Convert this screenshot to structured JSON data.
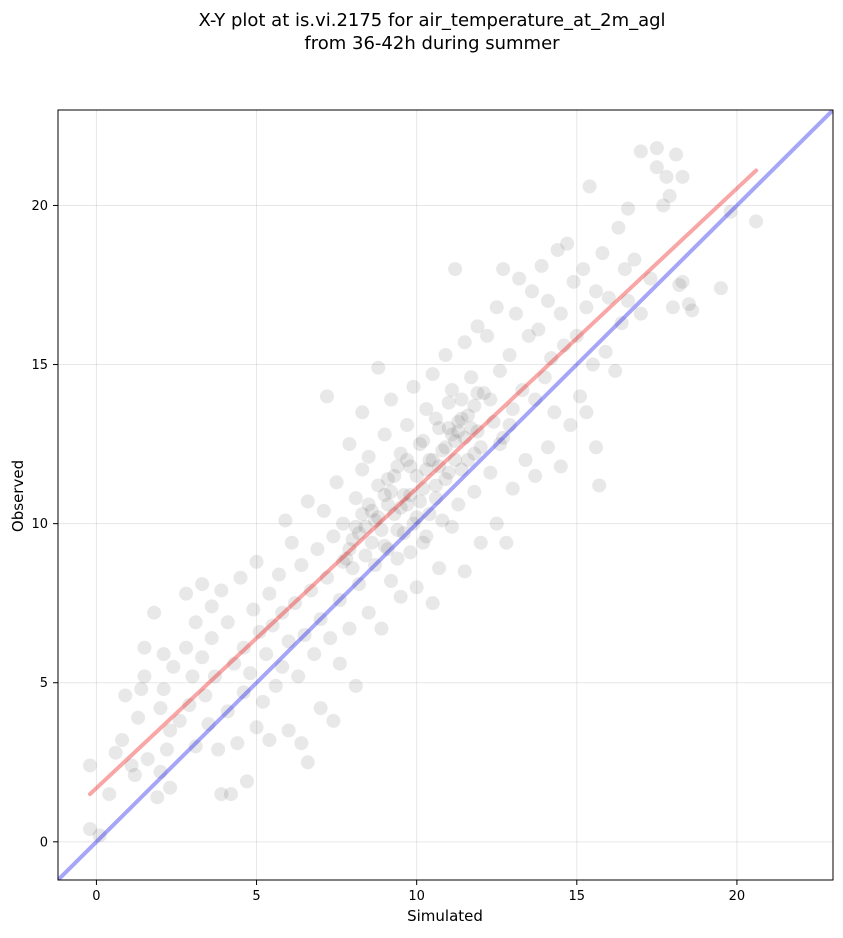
{
  "chart_data": {
    "type": "scatter",
    "title": "X-Y plot at is.vi.2175 for air_temperature_at_2m_agl",
    "subtitle": "from 36-42h during summer",
    "xlabel": "Simulated",
    "ylabel": "Observed",
    "xlim": [
      -1.2,
      23.0
    ],
    "ylim": [
      -1.2,
      23.0
    ],
    "x_ticks": [
      0,
      5,
      10,
      15,
      20
    ],
    "y_ticks": [
      0,
      5,
      10,
      15,
      20
    ],
    "x_tick_labels": [
      "0",
      "5",
      "10",
      "15",
      "20"
    ],
    "y_tick_labels": [
      "0",
      "5",
      "10",
      "15",
      "20"
    ],
    "grid": true,
    "point_color": "#000000",
    "point_alpha": 0.09,
    "series": [
      {
        "points": [
          [
            -0.2,
            0.4
          ],
          [
            -0.2,
            2.4
          ],
          [
            0.1,
            0.2
          ],
          [
            0.4,
            1.5
          ],
          [
            0.6,
            2.8
          ],
          [
            0.8,
            3.2
          ],
          [
            0.9,
            4.6
          ],
          [
            1.1,
            2.4
          ],
          [
            1.2,
            2.1
          ],
          [
            1.3,
            3.9
          ],
          [
            1.4,
            4.8
          ],
          [
            1.5,
            6.1
          ],
          [
            1.5,
            5.2
          ],
          [
            1.6,
            2.6
          ],
          [
            1.8,
            7.2
          ],
          [
            1.9,
            1.4
          ],
          [
            2.0,
            2.2
          ],
          [
            2.0,
            4.2
          ],
          [
            2.1,
            4.8
          ],
          [
            2.1,
            5.9
          ],
          [
            2.2,
            2.9
          ],
          [
            2.3,
            1.7
          ],
          [
            2.3,
            3.5
          ],
          [
            2.4,
            5.5
          ],
          [
            2.6,
            3.8
          ],
          [
            2.8,
            6.1
          ],
          [
            2.8,
            7.8
          ],
          [
            2.9,
            4.3
          ],
          [
            3.0,
            5.2
          ],
          [
            3.1,
            3.0
          ],
          [
            3.1,
            6.9
          ],
          [
            3.3,
            5.8
          ],
          [
            3.3,
            8.1
          ],
          [
            3.4,
            4.6
          ],
          [
            3.5,
            3.7
          ],
          [
            3.6,
            6.4
          ],
          [
            3.6,
            7.4
          ],
          [
            3.7,
            5.2
          ],
          [
            3.8,
            2.9
          ],
          [
            3.9,
            1.5
          ],
          [
            3.9,
            7.9
          ],
          [
            4.1,
            4.1
          ],
          [
            4.1,
            6.9
          ],
          [
            4.2,
            1.5
          ],
          [
            4.3,
            5.6
          ],
          [
            4.4,
            3.1
          ],
          [
            4.5,
            8.3
          ],
          [
            4.6,
            6.1
          ],
          [
            4.6,
            4.7
          ],
          [
            4.7,
            1.9
          ],
          [
            4.8,
            5.3
          ],
          [
            4.9,
            7.3
          ],
          [
            5.0,
            3.6
          ],
          [
            5.0,
            8.8
          ],
          [
            5.1,
            6.6
          ],
          [
            5.2,
            4.4
          ],
          [
            5.3,
            5.9
          ],
          [
            5.4,
            7.8
          ],
          [
            5.4,
            3.2
          ],
          [
            5.5,
            6.8
          ],
          [
            5.6,
            4.9
          ],
          [
            5.7,
            8.4
          ],
          [
            5.8,
            5.5
          ],
          [
            5.8,
            7.2
          ],
          [
            5.9,
            10.1
          ],
          [
            6.0,
            3.5
          ],
          [
            6.0,
            6.3
          ],
          [
            6.1,
            9.4
          ],
          [
            6.2,
            7.5
          ],
          [
            6.3,
            5.2
          ],
          [
            6.4,
            8.7
          ],
          [
            6.4,
            3.1
          ],
          [
            6.5,
            6.5
          ],
          [
            6.6,
            10.7
          ],
          [
            6.6,
            2.5
          ],
          [
            6.7,
            7.9
          ],
          [
            6.8,
            5.9
          ],
          [
            6.9,
            9.2
          ],
          [
            7.0,
            4.2
          ],
          [
            7.0,
            7.0
          ],
          [
            7.1,
            10.4
          ],
          [
            7.2,
            8.3
          ],
          [
            7.2,
            14.0
          ],
          [
            7.3,
            6.4
          ],
          [
            7.4,
            3.8
          ],
          [
            7.4,
            9.6
          ],
          [
            7.5,
            11.3
          ],
          [
            7.6,
            7.6
          ],
          [
            7.6,
            5.6
          ],
          [
            7.7,
            10.0
          ],
          [
            7.8,
            8.9
          ],
          [
            7.9,
            12.5
          ],
          [
            7.9,
            6.7
          ],
          [
            8.0,
            9.5
          ],
          [
            8.1,
            10.8
          ],
          [
            8.1,
            4.9
          ],
          [
            8.2,
            8.1
          ],
          [
            8.3,
            13.5
          ],
          [
            8.3,
            11.7
          ],
          [
            8.4,
            9.9
          ],
          [
            8.5,
            7.2
          ],
          [
            8.5,
            12.1
          ],
          [
            8.6,
            10.4
          ],
          [
            8.7,
            8.7
          ],
          [
            8.8,
            14.9
          ],
          [
            8.8,
            11.2
          ],
          [
            8.9,
            6.7
          ],
          [
            9.0,
            9.3
          ],
          [
            9.0,
            12.8
          ],
          [
            9.1,
            10.6
          ],
          [
            9.2,
            8.2
          ],
          [
            9.2,
            13.9
          ],
          [
            9.3,
            11.5
          ],
          [
            9.4,
            9.8
          ],
          [
            9.5,
            12.2
          ],
          [
            9.5,
            7.7
          ],
          [
            9.6,
            10.9
          ],
          [
            9.7,
            13.1
          ],
          [
            9.8,
            9.1
          ],
          [
            9.8,
            11.8
          ],
          [
            9.9,
            14.3
          ],
          [
            10.0,
            10.2
          ],
          [
            10.0,
            8.0
          ],
          [
            10.1,
            12.5
          ],
          [
            10.2,
            11.1
          ],
          [
            10.3,
            13.6
          ],
          [
            10.3,
            9.6
          ],
          [
            10.4,
            12.0
          ],
          [
            10.5,
            14.7
          ],
          [
            10.5,
            7.5
          ],
          [
            10.6,
            10.8
          ],
          [
            10.7,
            13.0
          ],
          [
            10.7,
            8.6
          ],
          [
            10.8,
            12.3
          ],
          [
            10.9,
            15.3
          ],
          [
            10.9,
            11.4
          ],
          [
            11.0,
            13.8
          ],
          [
            11.1,
            9.9
          ],
          [
            11.1,
            14.2
          ],
          [
            11.2,
            12.6
          ],
          [
            11.2,
            18.0
          ],
          [
            11.3,
            10.6
          ],
          [
            11.4,
            13.3
          ],
          [
            11.5,
            15.7
          ],
          [
            11.5,
            8.5
          ],
          [
            11.6,
            12.0
          ],
          [
            11.7,
            14.6
          ],
          [
            11.8,
            11.0
          ],
          [
            11.8,
            13.7
          ],
          [
            11.9,
            16.2
          ],
          [
            12.0,
            12.4
          ],
          [
            12.0,
            9.4
          ],
          [
            12.1,
            14.1
          ],
          [
            12.2,
            15.9
          ],
          [
            12.3,
            11.6
          ],
          [
            12.4,
            13.2
          ],
          [
            12.5,
            16.8
          ],
          [
            12.5,
            10.0
          ],
          [
            12.6,
            14.8
          ],
          [
            12.7,
            18.0
          ],
          [
            12.7,
            12.7
          ],
          [
            12.8,
            9.4
          ],
          [
            12.9,
            15.3
          ],
          [
            13.0,
            13.6
          ],
          [
            13.0,
            11.1
          ],
          [
            13.1,
            16.6
          ],
          [
            13.2,
            17.7
          ],
          [
            13.3,
            14.2
          ],
          [
            13.4,
            12.0
          ],
          [
            13.5,
            15.9
          ],
          [
            13.6,
            17.3
          ],
          [
            13.7,
            13.9
          ],
          [
            13.7,
            11.5
          ],
          [
            13.8,
            16.1
          ],
          [
            13.9,
            18.1
          ],
          [
            14.0,
            14.6
          ],
          [
            14.1,
            12.4
          ],
          [
            14.1,
            17.0
          ],
          [
            14.2,
            15.2
          ],
          [
            14.3,
            13.5
          ],
          [
            14.4,
            18.6
          ],
          [
            14.5,
            16.6
          ],
          [
            14.5,
            11.8
          ],
          [
            14.6,
            15.6
          ],
          [
            14.7,
            18.8
          ],
          [
            14.8,
            13.1
          ],
          [
            14.9,
            17.6
          ],
          [
            15.0,
            15.9
          ],
          [
            15.1,
            14.0
          ],
          [
            15.2,
            18.0
          ],
          [
            15.3,
            16.8
          ],
          [
            15.3,
            13.5
          ],
          [
            15.4,
            20.6
          ],
          [
            15.5,
            15.0
          ],
          [
            15.6,
            12.4
          ],
          [
            15.6,
            17.3
          ],
          [
            15.7,
            11.2
          ],
          [
            15.8,
            18.5
          ],
          [
            15.9,
            15.4
          ],
          [
            16.0,
            17.1
          ],
          [
            16.2,
            14.8
          ],
          [
            16.3,
            19.3
          ],
          [
            16.4,
            16.3
          ],
          [
            16.5,
            18.0
          ],
          [
            16.6,
            19.9
          ],
          [
            16.6,
            17.0
          ],
          [
            16.8,
            18.3
          ],
          [
            17.0,
            16.6
          ],
          [
            17.0,
            21.7
          ],
          [
            17.3,
            17.7
          ],
          [
            17.5,
            21.8
          ],
          [
            17.5,
            21.2
          ],
          [
            17.7,
            20.0
          ],
          [
            17.8,
            20.9
          ],
          [
            17.9,
            20.3
          ],
          [
            18.0,
            16.8
          ],
          [
            18.1,
            21.6
          ],
          [
            18.2,
            17.5
          ],
          [
            18.3,
            20.9
          ],
          [
            18.3,
            17.6
          ],
          [
            18.5,
            16.9
          ],
          [
            18.6,
            16.7
          ],
          [
            19.5,
            17.4
          ],
          [
            19.8,
            19.8
          ],
          [
            20.6,
            19.5
          ],
          [
            8.4,
            9.0
          ],
          [
            8.6,
            9.4
          ],
          [
            8.9,
            9.8
          ],
          [
            9.1,
            9.2
          ],
          [
            9.3,
            10.3
          ],
          [
            9.4,
            8.9
          ],
          [
            9.6,
            9.7
          ],
          [
            9.7,
            10.6
          ],
          [
            9.9,
            10.0
          ],
          [
            10.1,
            10.7
          ],
          [
            10.2,
            9.4
          ],
          [
            10.4,
            10.3
          ],
          [
            10.6,
            11.2
          ],
          [
            10.8,
            10.1
          ],
          [
            11.0,
            11.6
          ],
          [
            11.2,
            12.0
          ],
          [
            11.3,
            12.9
          ],
          [
            11.4,
            11.7
          ],
          [
            11.6,
            13.4
          ],
          [
            11.8,
            12.2
          ],
          [
            8.0,
            8.6
          ],
          [
            8.2,
            9.7
          ],
          [
            8.7,
            10.1
          ],
          [
            9.0,
            10.9
          ],
          [
            9.2,
            11.0
          ],
          [
            9.5,
            10.5
          ],
          [
            9.8,
            10.9
          ],
          [
            10.0,
            11.5
          ],
          [
            10.3,
            11.7
          ],
          [
            10.5,
            12.0
          ],
          [
            10.7,
            11.8
          ],
          [
            10.9,
            12.4
          ],
          [
            11.1,
            12.8
          ],
          [
            11.3,
            13.2
          ],
          [
            11.5,
            12.7
          ],
          [
            11.7,
            13.0
          ],
          [
            11.9,
            12.9
          ],
          [
            7.7,
            8.8
          ],
          [
            7.9,
            9.2
          ],
          [
            8.1,
            9.9
          ],
          [
            8.3,
            10.3
          ],
          [
            8.5,
            10.6
          ],
          [
            8.8,
            10.2
          ],
          [
            9.1,
            11.4
          ],
          [
            9.4,
            11.8
          ],
          [
            9.7,
            12.0
          ],
          [
            10.2,
            12.6
          ],
          [
            10.6,
            13.3
          ],
          [
            11.0,
            13.0
          ],
          [
            11.4,
            13.9
          ],
          [
            11.9,
            14.1
          ],
          [
            12.3,
            13.9
          ],
          [
            12.6,
            12.5
          ],
          [
            12.9,
            13.1
          ]
        ]
      }
    ],
    "reference_lines": [
      {
        "type": "identity",
        "color": "#0000ee",
        "alpha": 0.35,
        "points": [
          [
            -1.2,
            -1.2
          ],
          [
            23.0,
            23.0
          ]
        ]
      },
      {
        "type": "fit",
        "color": "#ee0000",
        "alpha": 0.35,
        "points": [
          [
            -0.2,
            1.5
          ],
          [
            20.6,
            21.1
          ]
        ]
      }
    ]
  }
}
